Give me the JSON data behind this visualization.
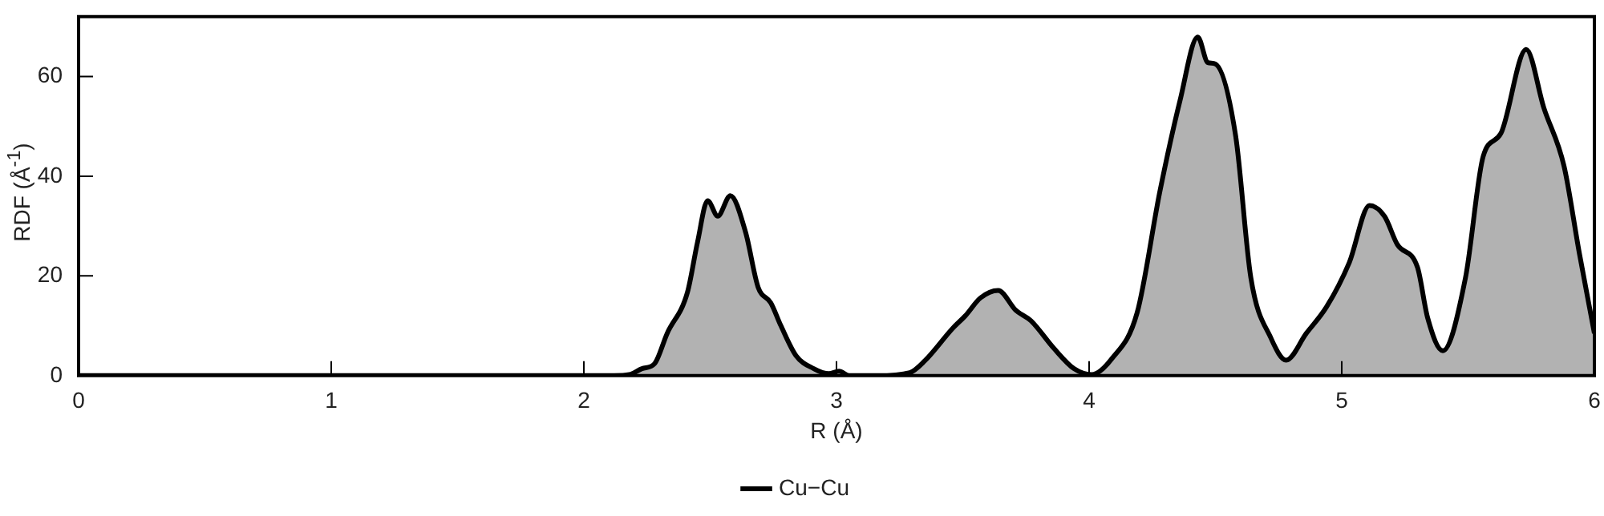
{
  "chart_data": {
    "type": "area",
    "xlabel": "R (Å)",
    "ylabel": "RDF (Å$^{-1}$)",
    "xlim": [
      0,
      6
    ],
    "ylim": [
      0,
      72
    ],
    "xticks": [
      0,
      1,
      2,
      3,
      4,
      5,
      6
    ],
    "yticks": [
      0,
      20,
      40,
      60
    ],
    "legend": "bottom",
    "x": [
      0,
      1,
      2,
      2.12,
      2.18,
      2.23,
      2.28,
      2.33,
      2.41,
      2.45,
      2.49,
      2.53,
      2.58,
      2.64,
      2.69,
      2.74,
      2.78,
      2.84,
      2.91,
      2.97,
      3.01,
      3.05,
      3.16,
      3.29,
      3.35,
      3.46,
      3.51,
      3.57,
      3.64,
      3.71,
      3.77,
      3.86,
      3.94,
      4.01,
      4.09,
      4.19,
      4.28,
      4.36,
      4.43,
      4.47,
      4.5,
      4.58,
      4.64,
      4.72,
      4.78,
      4.86,
      4.94,
      5.03,
      5.11,
      5.17,
      5.22,
      5.3,
      5.34,
      5.4,
      5.49,
      5.56,
      5.63,
      5.73,
      5.8,
      5.88,
      5.94,
      6
    ],
    "series": [
      {
        "name": "Cu−Cu",
        "color": "#000000",
        "values": [
          0,
          0,
          0,
          0,
          0.2,
          1.4,
          2.4,
          8.5,
          16.7,
          26.8,
          35.1,
          32,
          36.1,
          28.8,
          17.7,
          14.6,
          10,
          4,
          1.4,
          0.4,
          0.9,
          0,
          0,
          0.6,
          3,
          9.5,
          12,
          15.6,
          17.1,
          13.1,
          11,
          5.5,
          1.4,
          0.2,
          3.4,
          12.6,
          36.9,
          55.2,
          67.9,
          62.8,
          62.5,
          48.1,
          19.7,
          7.5,
          3.1,
          8.5,
          13.8,
          22.7,
          34.1,
          31.9,
          26.3,
          21.7,
          11.6,
          5,
          19.7,
          44,
          48.6,
          65.4,
          53.7,
          42,
          24.7,
          8.5
        ]
      }
    ]
  }
}
